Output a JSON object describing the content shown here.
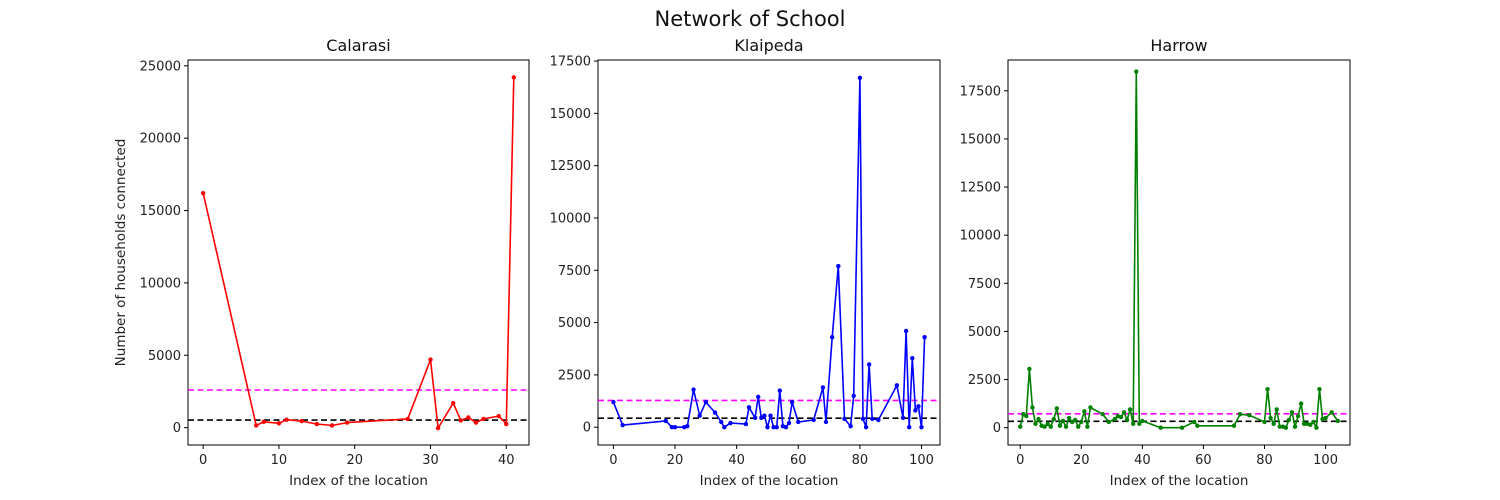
{
  "figure": {
    "title": "Network of School"
  },
  "chart_data": [
    {
      "type": "line",
      "title": "Calarasi",
      "xlabel": "Index of the location",
      "ylabel": "Number of households connected",
      "xlim": [
        -2,
        43
      ],
      "ylim": [
        -1200,
        25400
      ],
      "xticks": [
        0,
        10,
        20,
        30,
        40
      ],
      "yticks": [
        0,
        5000,
        10000,
        15000,
        20000,
        25000
      ],
      "grid": false,
      "color": "#ff0000",
      "hlines": [
        {
          "y": 2600,
          "color": "#ff00ff",
          "style": "dashed"
        },
        {
          "y": 520,
          "color": "#000000",
          "style": "dashed"
        }
      ],
      "series": [
        {
          "x": [
            0,
            7,
            8,
            10,
            11,
            13,
            15,
            17,
            19,
            27,
            30,
            31,
            33,
            34,
            35,
            36,
            37,
            39,
            40,
            41
          ],
          "y": [
            16200,
            150,
            400,
            300,
            550,
            450,
            250,
            150,
            350,
            600,
            4700,
            -30,
            1700,
            500,
            700,
            350,
            600,
            800,
            250,
            24200
          ]
        }
      ]
    },
    {
      "type": "line",
      "title": "Klaipeda",
      "xlabel": "Index of the location",
      "ylabel": "",
      "xlim": [
        -5,
        106
      ],
      "ylim": [
        -850,
        17550
      ],
      "xticks": [
        0,
        20,
        40,
        60,
        80,
        100
      ],
      "yticks": [
        0,
        2500,
        5000,
        7500,
        10000,
        12500,
        15000,
        17500
      ],
      "grid": false,
      "color": "#0000ff",
      "hlines": [
        {
          "y": 1280,
          "color": "#ff00ff",
          "style": "dashed"
        },
        {
          "y": 430,
          "color": "#000000",
          "style": "dashed"
        }
      ],
      "series": [
        {
          "x": [
            0,
            3,
            17,
            19,
            20,
            23,
            24,
            26,
            28,
            30,
            33,
            35,
            36,
            38,
            43,
            44,
            46,
            47,
            48,
            49,
            50,
            51,
            52,
            53,
            54,
            55,
            56,
            57,
            58,
            60,
            65,
            68,
            69,
            71,
            73,
            75,
            77,
            78,
            80,
            81,
            82,
            83,
            84,
            86,
            92,
            94,
            95,
            96,
            97,
            98,
            99,
            100,
            101
          ],
          "y": [
            1200,
            100,
            300,
            0,
            0,
            0,
            50,
            1800,
            550,
            1200,
            700,
            250,
            0,
            200,
            150,
            950,
            450,
            1450,
            450,
            550,
            0,
            550,
            0,
            0,
            1750,
            50,
            0,
            200,
            1200,
            250,
            350,
            1900,
            250,
            4300,
            7700,
            400,
            50,
            1500,
            16700,
            400,
            0,
            3000,
            400,
            350,
            2000,
            450,
            4600,
            0,
            3300,
            800,
            1000,
            0,
            4300
          ]
        }
      ]
    },
    {
      "type": "line",
      "title": "Harrow",
      "xlabel": "Index of the location",
      "ylabel": "",
      "xlim": [
        -4,
        108
      ],
      "ylim": [
        -900,
        19100
      ],
      "xticks": [
        0,
        20,
        40,
        60,
        80,
        100
      ],
      "yticks": [
        0,
        2500,
        5000,
        7500,
        10000,
        12500,
        15000,
        17500
      ],
      "grid": false,
      "color": "#008000",
      "hlines": [
        {
          "y": 720,
          "color": "#ff00ff",
          "style": "dashed"
        },
        {
          "y": 330,
          "color": "#000000",
          "style": "dashed"
        }
      ],
      "series": [
        {
          "x": [
            0,
            1,
            2,
            3,
            4,
            5,
            6,
            7,
            8,
            9,
            10,
            11,
            12,
            13,
            14,
            15,
            16,
            17,
            18,
            19,
            20,
            21,
            22,
            23,
            27,
            29,
            31,
            32,
            33,
            34,
            35,
            36,
            37,
            38,
            39,
            40,
            46,
            53,
            57,
            58,
            70,
            72,
            75,
            80,
            81,
            82,
            83,
            84,
            85,
            86,
            87,
            88,
            89,
            90,
            91,
            92,
            93,
            94,
            95,
            96,
            97,
            98,
            99,
            100,
            102,
            104
          ],
          "y": [
            50,
            700,
            600,
            3050,
            1050,
            200,
            450,
            100,
            50,
            200,
            50,
            450,
            1000,
            100,
            350,
            50,
            500,
            300,
            400,
            50,
            300,
            850,
            50,
            1050,
            700,
            300,
            450,
            600,
            550,
            800,
            400,
            950,
            200,
            18500,
            200,
            350,
            0,
            0,
            300,
            100,
            100,
            700,
            650,
            300,
            2000,
            500,
            200,
            950,
            50,
            50,
            0,
            400,
            800,
            50,
            600,
            1250,
            200,
            200,
            150,
            300,
            0,
            2000,
            450,
            500,
            800,
            350
          ]
        }
      ]
    }
  ]
}
